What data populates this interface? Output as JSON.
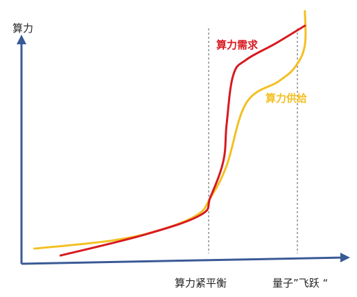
{
  "chart_data": {
    "type": "line",
    "title": "",
    "ylabel": "算力",
    "xlabel": "",
    "markers": [
      "算力紧平衡",
      "量子”飞跃 “"
    ],
    "series": [
      {
        "name": "算力需求",
        "color": "#d71920",
        "points": [
          [
            0.09,
            0.011
          ],
          [
            0.35,
            0.096
          ],
          [
            0.52,
            0.175
          ],
          [
            0.55,
            0.247
          ],
          [
            0.59,
            0.394
          ],
          [
            0.6,
            0.544
          ],
          [
            0.62,
            0.74
          ],
          [
            0.66,
            0.803
          ],
          [
            0.75,
            0.869
          ],
          [
            0.84,
            0.941
          ]
        ]
      },
      {
        "name": "算力供给",
        "color": "#f3c022",
        "points": [
          [
            0.01,
            0.039
          ],
          [
            0.25,
            0.072
          ],
          [
            0.4,
            0.116
          ],
          [
            0.51,
            0.176
          ],
          [
            0.55,
            0.244
          ],
          [
            0.6,
            0.375
          ],
          [
            0.66,
            0.628
          ],
          [
            0.76,
            0.716
          ],
          [
            0.81,
            0.774
          ],
          [
            0.84,
            0.862
          ],
          [
            0.84,
            1.0
          ]
        ]
      }
    ]
  }
}
